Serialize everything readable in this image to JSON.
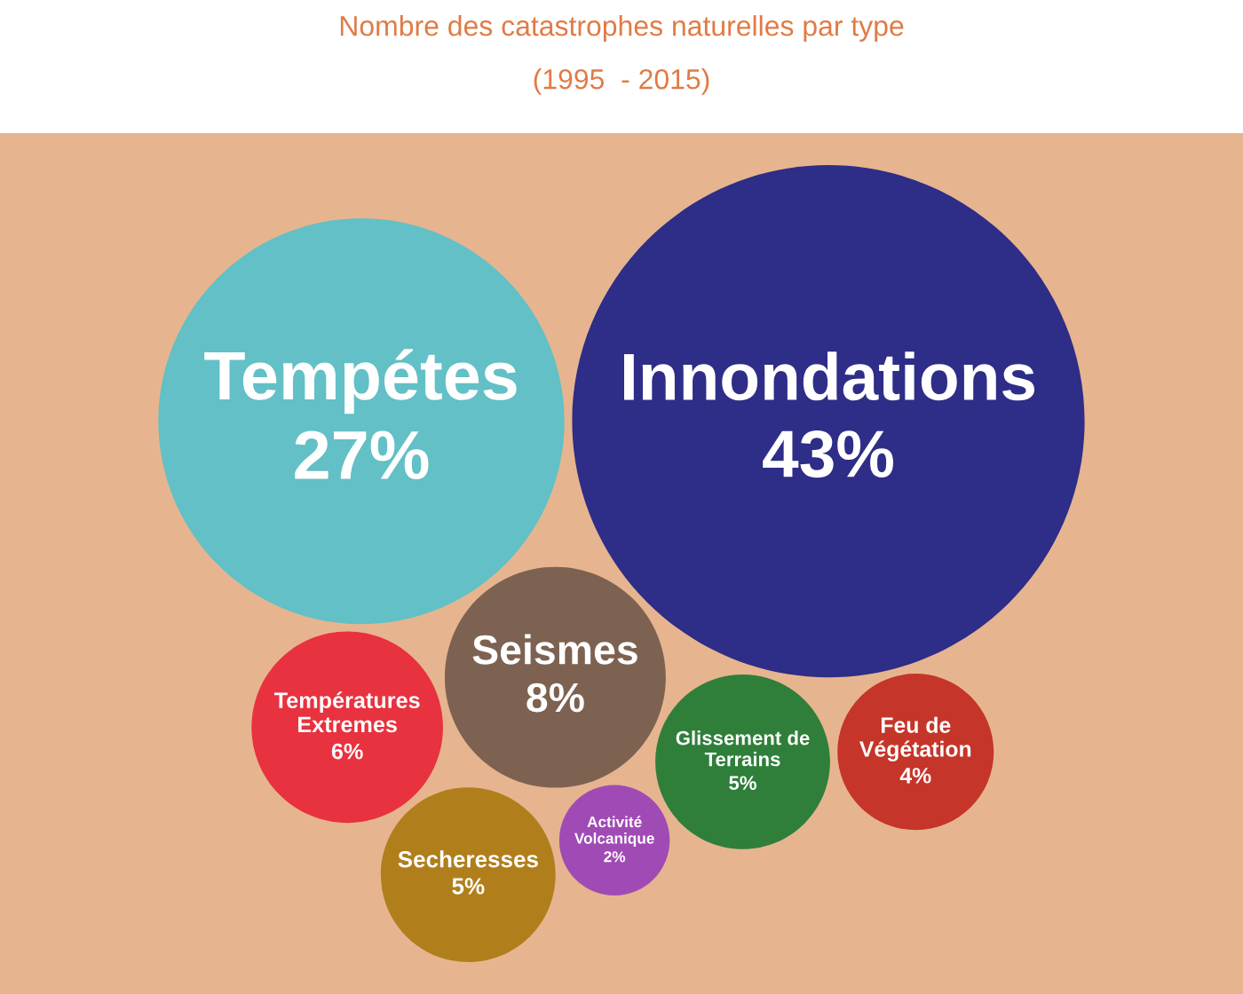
{
  "chart_data": {
    "type": "other",
    "title": "Nombre des catastrophes naturelles par type",
    "subtitle": "(1995  - 2015)",
    "categories": [
      "Tempétes",
      "Innondations",
      "Seismes",
      "Glissement de Terrains",
      "Températures Extremes",
      "Feu de Végétation",
      "Activité Volcanique",
      "Secheresses"
    ],
    "values": [
      27,
      43,
      8,
      5,
      6,
      4,
      2,
      5
    ],
    "value_labels": [
      "27%",
      "43%",
      "8%",
      "5%",
      "6%",
      "4%",
      "2%",
      "5%"
    ],
    "colors": [
      "#62c0c6",
      "#2e2d87",
      "#7d6252",
      "#2f7f3a",
      "#e8323f",
      "#c5352a",
      "#a04bb5",
      "#b07f1c"
    ]
  }
}
